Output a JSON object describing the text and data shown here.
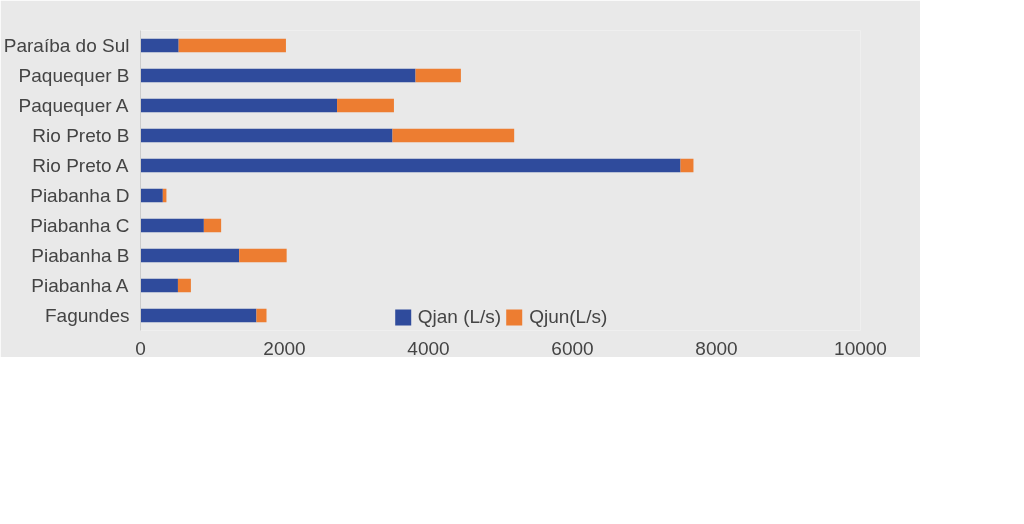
{
  "chart_data": {
    "type": "bar",
    "orientation": "horizontal",
    "stacked": true,
    "categories": [
      "Paraíba do Sul",
      "Paquequer B",
      "Paquequer A",
      "Rio Preto B",
      "Rio Preto A",
      "Piabanha D",
      "Piabanha C",
      "Piabanha B",
      "Piabanha A",
      "Fagundes"
    ],
    "series": [
      {
        "name": "Qjan (L/s)",
        "color": "#2f4b9c",
        "values": [
          530,
          3820,
          2730,
          3500,
          7500,
          310,
          880,
          1370,
          520,
          1610
        ]
      },
      {
        "name": "Qjun(L/s)",
        "color": "#ed7d31",
        "values": [
          1490,
          630,
          790,
          1690,
          180,
          50,
          240,
          660,
          180,
          140
        ]
      }
    ],
    "xlim": [
      0,
      10000
    ],
    "xticks": [
      0,
      2000,
      4000,
      6000,
      8000,
      10000
    ],
    "grid": false,
    "legend": "bottom"
  }
}
